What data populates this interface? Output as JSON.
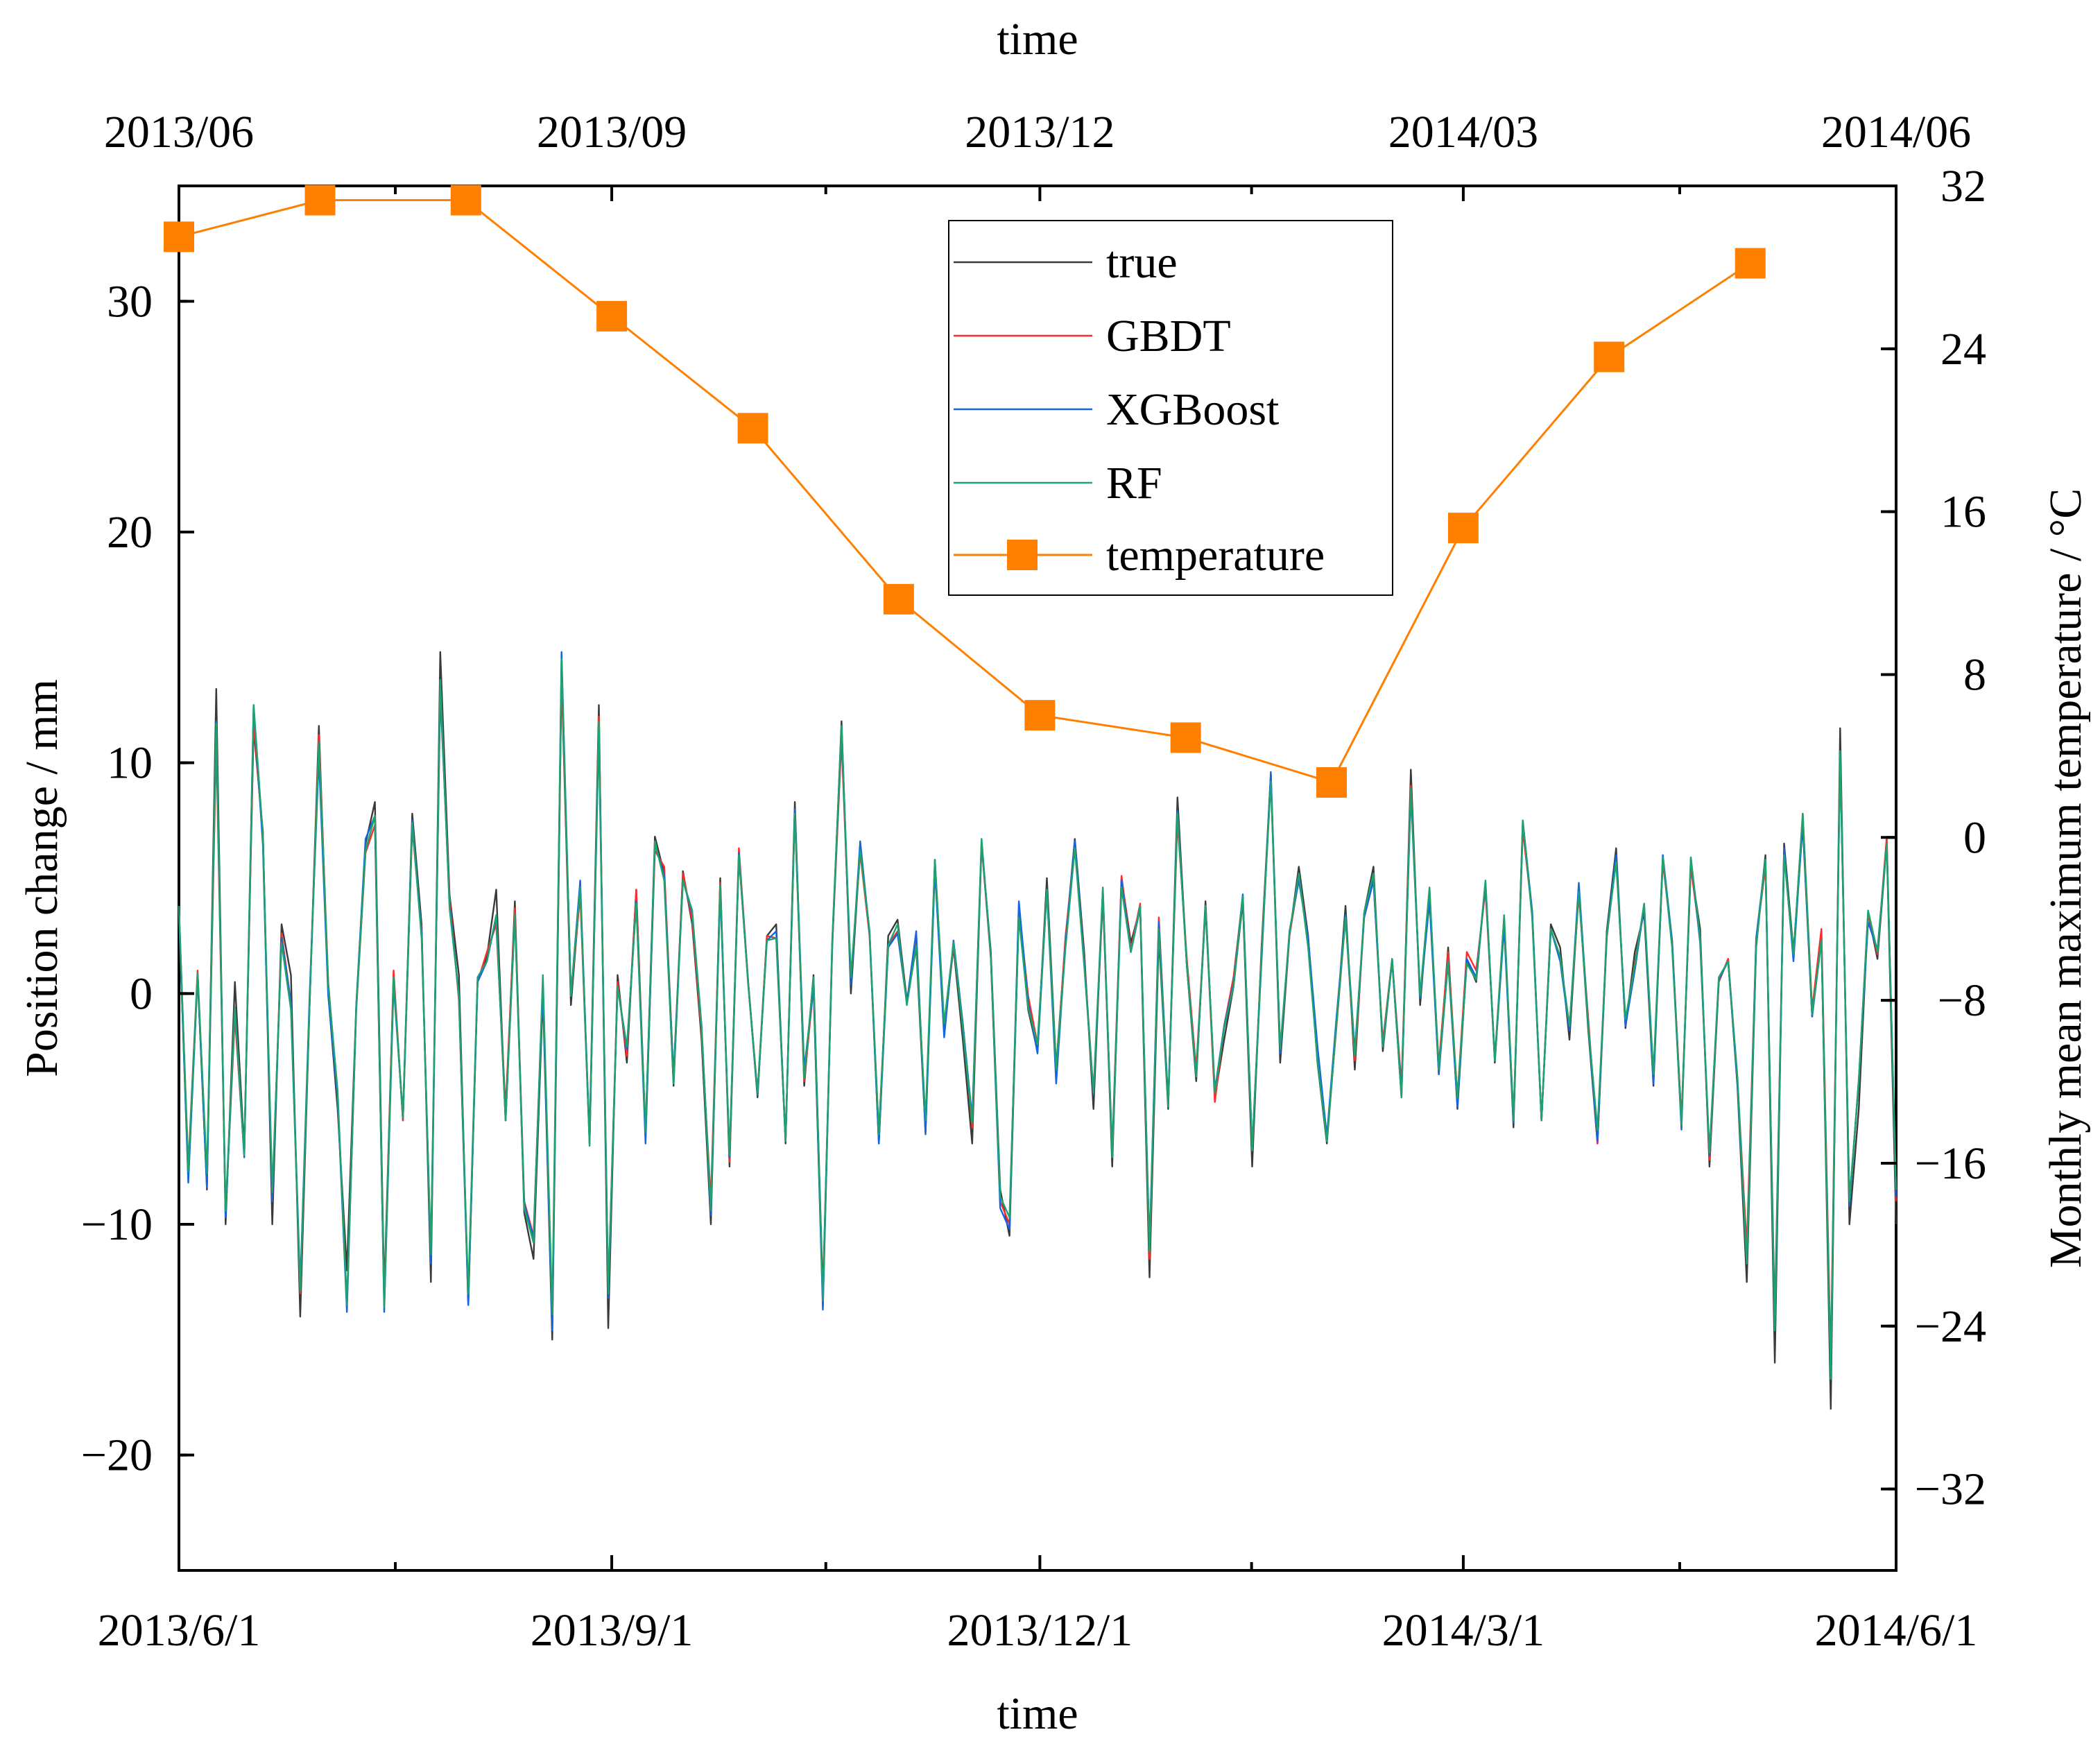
{
  "chart_data": {
    "type": "line",
    "title": "",
    "xlabel_bottom": "time",
    "xlabel_top": "time",
    "ylabel_left": "Position change / mm",
    "ylabel_right": "Monthly mean maximum temperature / °C",
    "x_range_days": [
      0,
      365
    ],
    "ylim_left": [
      -25,
      35
    ],
    "ylim_right": [
      -36,
      32
    ],
    "bottom_ticks": [
      {
        "label": "2013/6/1",
        "day": 0
      },
      {
        "label": "2013/9/1",
        "day": 92
      },
      {
        "label": "2013/12/1",
        "day": 183
      },
      {
        "label": "2014/3/1",
        "day": 273
      },
      {
        "label": "2014/6/1",
        "day": 365
      }
    ],
    "top_ticks": [
      {
        "label": "2013/06",
        "day": 0
      },
      {
        "label": "2013/09",
        "day": 92
      },
      {
        "label": "2013/12",
        "day": 183
      },
      {
        "label": "2014/03",
        "day": 273
      },
      {
        "label": "2014/06",
        "day": 365
      }
    ],
    "left_ticks": [
      {
        "label": "−20",
        "value": -20
      },
      {
        "label": "−10",
        "value": -10
      },
      {
        "label": "0",
        "value": 0
      },
      {
        "label": "10",
        "value": 10
      },
      {
        "label": "20",
        "value": 20
      },
      {
        "label": "30",
        "value": 30
      }
    ],
    "right_ticks": [
      {
        "label": "−32",
        "value": -32
      },
      {
        "label": "−24",
        "value": -24
      },
      {
        "label": "−16",
        "value": -16
      },
      {
        "label": "−8",
        "value": -8
      },
      {
        "label": "0",
        "value": 0
      },
      {
        "label": "8",
        "value": 8
      },
      {
        "label": "16",
        "value": 16
      },
      {
        "label": "24",
        "value": 24
      },
      {
        "label": "32",
        "value": 32
      }
    ],
    "legend": {
      "position": "top-center",
      "entries": [
        {
          "key": "true",
          "label": "true"
        },
        {
          "key": "gbdt",
          "label": "GBDT"
        },
        {
          "key": "xgboost",
          "label": "XGBoost"
        },
        {
          "key": "rf",
          "label": "RF"
        },
        {
          "key": "temperature",
          "label": "temperature"
        }
      ]
    },
    "colors": {
      "true": "#3a3a3a",
      "gbdt": "#ff2a2a",
      "xgboost": "#1565e0",
      "rf": "#1ea36e",
      "temperature": "#ff7f00"
    },
    "position_series": {
      "sampling": "every 2 days, starting 2013/6/1",
      "true": [
        3.5,
        -8.0,
        0.8,
        -8.5,
        13.2,
        -10.0,
        0.5,
        -6.8,
        11.5,
        7.0,
        -10.0,
        3.0,
        0.8,
        -14.0,
        -0.5,
        11.6,
        0.0,
        -5.0,
        -12.0,
        -0.5,
        6.5,
        8.3,
        -13.0,
        0.8,
        -5.5,
        7.8,
        3.0,
        -12.5,
        14.8,
        4.3,
        0.8,
        -13.5,
        0.5,
        1.6,
        4.5,
        -5.5,
        4.0,
        -9.5,
        -11.5,
        0.0,
        -15.0,
        13.8,
        -0.5,
        4.5,
        -6.3,
        12.5,
        -14.5,
        0.8,
        -3.0,
        4.5,
        -6.0,
        6.8,
        5.2,
        -4.0,
        5.3,
        3.0,
        -2.0,
        -10.0,
        5.0,
        -7.5,
        6.0,
        0.5,
        -4.5,
        2.5,
        3.0,
        -6.5,
        8.3,
        -4.0,
        0.8,
        -13.0,
        2.0,
        11.8,
        0.0,
        6.3,
        2.7,
        -6.5,
        2.5,
        3.2,
        -0.3,
        2.0,
        -6.0,
        5.8,
        -1.5,
        2.0,
        -2.0,
        -6.5,
        6.5,
        1.8,
        -8.5,
        -10.5,
        3.5,
        -0.7,
        -2.5,
        5.0,
        -3.2,
        2.3,
        6.7,
        1.8,
        -5.0,
        4.5,
        -7.5,
        5.0,
        2.2,
        3.7,
        -12.3,
        2.5,
        -5.0,
        8.5,
        1.2,
        -3.8,
        4.0,
        -4.5,
        -2.0,
        0.3,
        4.0,
        -7.5,
        2.0,
        9.5,
        -3.0,
        2.5,
        5.5,
        2.5,
        -3.0,
        -6.5,
        -1.5,
        3.8,
        -3.3,
        3.5,
        5.5,
        -2.5,
        1.5,
        -4.5,
        9.7,
        -0.5,
        4.5,
        -3.5,
        2.0,
        -5.0,
        1.5,
        0.5,
        4.8,
        -3.0,
        3.2,
        -5.8,
        7.5,
        3.5,
        -5.5,
        3.0,
        2.0,
        -2.0,
        4.5,
        -1.5,
        -6.5,
        2.7,
        6.3,
        -1.5,
        1.8,
        3.5,
        -4.0,
        5.8,
        2.2,
        -5.5,
        5.5,
        2.8,
        -7.5,
        0.5,
        1.5,
        -4.0,
        -12.5,
        2.0,
        6.0,
        -16.0,
        6.5,
        1.8,
        7.3,
        -1.0,
        2.5,
        -18.0,
        11.5,
        -10.0,
        -5.0,
        3.5,
        1.5,
        6.5,
        -10.0
      ],
      "gbdt": [
        3.7,
        -7.5,
        1.0,
        -8.2,
        11.0,
        -9.5,
        -1.0,
        -7.0,
        11.8,
        6.8,
        -9.0,
        2.6,
        -0.4,
        -13.0,
        -0.5,
        11.2,
        0.5,
        -4.5,
        -13.5,
        -0.7,
        6.1,
        7.3,
        -13.5,
        1.0,
        -5.5,
        7.2,
        2.7,
        -11.5,
        13.0,
        4.2,
        -0.3,
        -13.2,
        0.5,
        1.8,
        3.0,
        -5.0,
        3.7,
        -9.0,
        -10.5,
        0.5,
        -14.5,
        14.0,
        -0.1,
        4.3,
        -6.5,
        12.0,
        -13.0,
        0.5,
        -2.7,
        4.5,
        -6.3,
        6.2,
        5.5,
        -3.6,
        5.2,
        3.2,
        -1.7,
        -9.0,
        4.8,
        -7.3,
        6.3,
        0.5,
        -4.3,
        2.5,
        2.4,
        -6.4,
        7.8,
        -3.8,
        0.3,
        -13.5,
        2.1,
        11.0,
        0.6,
        6.1,
        2.5,
        -6.0,
        2.1,
        2.7,
        -0.4,
        2.5,
        -5.8,
        5.5,
        -1.6,
        2.1,
        -1.3,
        -5.8,
        6.5,
        1.5,
        -9.0,
        -10.0,
        3.7,
        -0.1,
        -2.2,
        4.5,
        -3.5,
        2.5,
        6.4,
        1.5,
        -4.3,
        4.1,
        -6.8,
        5.1,
        1.9,
        3.9,
        -11.5,
        3.3,
        -4.8,
        7.5,
        1.5,
        -3.3,
        3.8,
        -4.7,
        -1.4,
        0.7,
        4.2,
        -6.8,
        1.8,
        9.4,
        -2.5,
        2.5,
        5.0,
        2.4,
        -2.5,
        -6.2,
        -1.6,
        3.3,
        -2.9,
        3.3,
        4.9,
        -2.1,
        1.5,
        -4.0,
        9.0,
        -0.2,
        4.2,
        -3.1,
        1.8,
        -4.5,
        1.8,
        1.0,
        4.5,
        -2.8,
        3.3,
        -5.4,
        7.1,
        3.5,
        -5.5,
        2.8,
        1.5,
        -1.5,
        4.3,
        -1.0,
        -6.5,
        2.4,
        5.9,
        -1.4,
        1.3,
        3.8,
        -3.6,
        5.7,
        2.3,
        -5.5,
        5.5,
        2.4,
        -7.2,
        0.5,
        1.5,
        -3.7,
        -11.0,
        2.3,
        5.5,
        -14.0,
        6.0,
        1.6,
        7.8,
        -0.7,
        2.8,
        -16.0,
        10.5,
        -9.0,
        -3.8,
        3.5,
        1.7,
        6.8,
        -9.0
      ],
      "xgboost": [
        3.6,
        -8.2,
        0.8,
        -8.4,
        11.8,
        -9.7,
        -0.6,
        -7.1,
        12.5,
        6.4,
        -9.0,
        2.4,
        -0.4,
        -12.7,
        -0.1,
        10.3,
        -0.1,
        -4.5,
        -13.8,
        -0.5,
        6.7,
        7.7,
        -13.8,
        0.4,
        -5.3,
        7.5,
        2.6,
        -11.7,
        13.3,
        3.9,
        -0.1,
        -13.5,
        0.5,
        1.4,
        3.3,
        -5.5,
        3.4,
        -9.1,
        -10.6,
        0.3,
        -14.6,
        14.8,
        -0.1,
        4.9,
        -6.5,
        11.4,
        -13.2,
        0.3,
        -2.4,
        4.0,
        -6.5,
        6.5,
        5.1,
        -3.6,
        4.9,
        3.5,
        -1.4,
        -9.6,
        4.5,
        -7.1,
        6.1,
        0.4,
        -4.4,
        2.3,
        2.7,
        -6.4,
        8.0,
        -3.3,
        0.3,
        -13.7,
        2.2,
        11.5,
        0.4,
        6.6,
        2.6,
        -6.5,
        2.0,
        2.6,
        -0.4,
        2.7,
        -6.1,
        5.4,
        -1.9,
        2.3,
        -1.3,
        -5.4,
        6.6,
        1.6,
        -9.3,
        -10.2,
        4.0,
        -0.4,
        -2.6,
        4.5,
        -3.9,
        2.2,
        6.6,
        1.4,
        -4.4,
        4.4,
        -7.0,
        4.9,
        1.8,
        3.7,
        -11.0,
        3.1,
        -4.7,
        7.9,
        1.2,
        -3.6,
        3.7,
        -4.2,
        -1.4,
        0.4,
        4.3,
        -6.7,
        1.4,
        9.6,
        -2.6,
        2.7,
        4.9,
        2.4,
        -2.3,
        -6.2,
        -1.2,
        3.4,
        -2.5,
        3.3,
        4.9,
        -2.3,
        1.4,
        -4.3,
        8.7,
        -0.2,
        4.0,
        -3.5,
        1.4,
        -4.9,
        1.5,
        0.7,
        4.8,
        -2.9,
        2.9,
        -5.6,
        7.4,
        3.6,
        -5.5,
        2.8,
        1.4,
        -1.6,
        4.8,
        -1.3,
        -6.4,
        2.5,
        6.0,
        -1.4,
        1.0,
        3.8,
        -3.9,
        6.0,
        2.3,
        -5.9,
        5.9,
        2.2,
        -7.0,
        0.6,
        1.4,
        -3.9,
        -11.7,
        2.4,
        5.8,
        -14.4,
        6.3,
        1.4,
        7.5,
        -1.0,
        2.3,
        -16.7,
        10.5,
        -9.2,
        -3.7,
        3.1,
        1.9,
        6.5,
        -8.8
      ],
      "rf": [
        3.8,
        -7.7,
        0.9,
        -7.8,
        11.7,
        -9.4,
        -0.6,
        -7.0,
        12.5,
        6.8,
        -8.6,
        2.2,
        -0.7,
        -12.9,
        -0.5,
        10.9,
        0.4,
        -4.2,
        -13.5,
        -0.6,
        6.2,
        7.7,
        -13.6,
        0.7,
        -5.4,
        7.4,
        2.4,
        -11.3,
        13.6,
        3.7,
        -0.1,
        -13.0,
        0.7,
        1.4,
        3.4,
        -5.5,
        3.4,
        -9.3,
        -10.8,
        0.8,
        -13.9,
        14.5,
        -0.1,
        4.6,
        -6.6,
        11.8,
        -13.0,
        0.3,
        -2.3,
        3.9,
        -6.0,
        6.6,
        4.9,
        -3.9,
        4.9,
        3.6,
        -1.5,
        -9.4,
        4.7,
        -7.0,
        6.0,
        0.4,
        -4.3,
        2.3,
        2.4,
        -6.4,
        7.8,
        -3.7,
        0.7,
        -13.3,
        2.3,
        11.6,
        0.7,
        6.2,
        2.7,
        -6.1,
        2.1,
        3.0,
        -0.5,
        2.1,
        -5.5,
        5.8,
        -1.3,
        2.2,
        -1.5,
        -5.6,
        6.7,
        1.6,
        -8.8,
        -9.7,
        3.3,
        -0.6,
        -2.2,
        4.5,
        -3.3,
        2.0,
        6.3,
        1.2,
        -4.3,
        4.6,
        -7.1,
        4.6,
        1.8,
        3.8,
        -11.2,
        2.8,
        -4.9,
        7.8,
        1.2,
        -3.6,
        3.8,
        -4.3,
        -1.5,
        0.3,
        4.2,
        -6.8,
        1.7,
        9.2,
        -2.4,
        2.6,
        5.2,
        2.0,
        -2.9,
        -6.4,
        -1.5,
        3.3,
        -2.7,
        3.5,
        5.2,
        -2.3,
        1.5,
        -4.5,
        8.9,
        -0.1,
        4.6,
        -3.3,
        1.4,
        -4.5,
        1.3,
        0.6,
        4.9,
        -2.9,
        3.4,
        -5.5,
        7.5,
        3.3,
        -5.5,
        2.8,
        1.6,
        -1.4,
        4.4,
        -1.3,
        -5.9,
        2.5,
        5.7,
        -1.1,
        1.2,
        3.9,
        -3.5,
        5.9,
        2.0,
        -5.7,
        5.9,
        2.4,
        -6.9,
        0.7,
        1.4,
        -3.6,
        -11.7,
        2.1,
        5.8,
        -14.6,
        6.0,
        1.7,
        7.8,
        -0.9,
        2.3,
        -16.7,
        10.5,
        -9.0,
        -3.8,
        3.6,
        1.8,
        6.5,
        -8.5
      ]
    },
    "temperature_series": {
      "x_days": [
        0,
        30,
        61,
        92,
        122,
        153,
        183,
        214,
        245,
        273,
        304,
        334
      ],
      "values": [
        29.5,
        31.3,
        31.3,
        25.6,
        20.1,
        11.7,
        6.0,
        4.9,
        2.7,
        15.2,
        23.6,
        28.2
      ]
    }
  }
}
